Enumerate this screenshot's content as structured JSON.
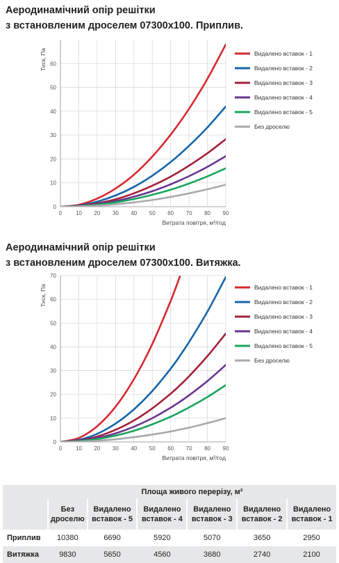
{
  "charts": [
    {
      "title_line1": "Аеродинамічний опір решітки",
      "title_line2": "з встановленим дроселем 07300х100. Приплив.",
      "ylabel": "Тиск, Па",
      "xlabel": "Витрата повітря, м³/год",
      "y_ticks": [
        "0",
        "10",
        "20",
        "30",
        "40",
        "50",
        "60"
      ],
      "x_ticks": [
        "0",
        "10",
        "20",
        "30",
        "40",
        "50",
        "60",
        "70",
        "80",
        "90"
      ]
    },
    {
      "title_line1": "Аеродинамічний опір решітки",
      "title_line2": "з встановленим дроселем 07300х100. Витяжка.",
      "ylabel": "Тиск, Па",
      "xlabel": "Витрата повітря, м³/год",
      "y_ticks": [
        "0",
        "10",
        "20",
        "30",
        "40",
        "50",
        "60",
        "70"
      ],
      "x_ticks": [
        "0",
        "10",
        "20",
        "30",
        "40",
        "50",
        "60",
        "70",
        "80",
        "90"
      ]
    }
  ],
  "chart_data": [
    {
      "type": "line",
      "title": "Аеродинамічний опір решітки з встановленим дроселем 07300х100. Приплив.",
      "xlabel": "Витрата повітря, м³/год",
      "ylabel": "Тиск, Па",
      "xlim": [
        0,
        90
      ],
      "ylim": [
        0,
        70
      ],
      "grid": true,
      "legend": "right",
      "x": [
        0,
        10,
        20,
        30,
        40,
        50,
        60,
        70,
        80,
        90
      ],
      "series": [
        {
          "name": "Видалено вставок - 1",
          "color": "#d7282f",
          "values": [
            0,
            0.8,
            3.4,
            7.6,
            13.4,
            21,
            30.2,
            41,
            53.6,
            68
          ]
        },
        {
          "name": "Видалено вставок - 2",
          "color": "#1565a9",
          "values": [
            0,
            0.5,
            2.1,
            4.7,
            8.3,
            13,
            18.7,
            25.5,
            33.2,
            42
          ]
        },
        {
          "name": "Видалено вставок - 3",
          "color": "#a3203a",
          "values": [
            0,
            0.35,
            1.4,
            3.1,
            5.6,
            8.8,
            12.6,
            17.2,
            22.4,
            28.3
          ]
        },
        {
          "name": "Видалено вставок - 4",
          "color": "#6a3590",
          "values": [
            0,
            0.26,
            1.05,
            2.35,
            4.2,
            6.5,
            9.4,
            12.8,
            16.7,
            21.2
          ]
        },
        {
          "name": "Видалено вставок - 5",
          "color": "#1aa55b",
          "values": [
            0,
            0.2,
            0.8,
            1.8,
            3.2,
            5,
            7.1,
            9.7,
            12.7,
            16.1
          ]
        },
        {
          "name": "Без дроселю",
          "color": "#a7a9ac",
          "values": [
            0,
            0.11,
            0.45,
            1.0,
            1.8,
            2.8,
            4.1,
            5.6,
            7.3,
            9.2
          ]
        }
      ]
    },
    {
      "type": "line",
      "title": "Аеродинамічний опір решітки з встановленим дроселем 07300х100. Витяжка.",
      "xlabel": "Витрата повітря, м³/год",
      "ylabel": "Тиск, Па",
      "xlim": [
        0,
        90
      ],
      "ylim": [
        0,
        70
      ],
      "grid": true,
      "legend": "right",
      "x": [
        0,
        10,
        20,
        30,
        40,
        50,
        60,
        65,
        70,
        80,
        90
      ],
      "series": [
        {
          "name": "Видалено вставок - 1",
          "color": "#d7282f",
          "values": [
            0,
            1.65,
            6.6,
            14.8,
            26.4,
            41.2,
            59.3,
            69.6,
            null,
            null,
            null
          ]
        },
        {
          "name": "Видалено вставок - 2",
          "color": "#1565a9",
          "values": [
            0,
            0.86,
            3.4,
            7.7,
            13.7,
            21.4,
            30.8,
            36.2,
            42,
            54.8,
            69.4
          ]
        },
        {
          "name": "Видалено вставок - 3",
          "color": "#a3203a",
          "values": [
            0,
            0.56,
            2.25,
            5.1,
            9.0,
            14.1,
            20.3,
            23.8,
            27.6,
            36.1,
            45.6
          ]
        },
        {
          "name": "Видалено вставок - 4",
          "color": "#6a3590",
          "values": [
            0,
            0.4,
            1.6,
            3.6,
            6.4,
            10.0,
            14.4,
            16.9,
            19.6,
            25.6,
            32.4
          ]
        },
        {
          "name": "Видалено вставок - 5",
          "color": "#1aa55b",
          "values": [
            0,
            0.3,
            1.18,
            2.65,
            4.7,
            7.4,
            10.6,
            12.5,
            14.5,
            18.9,
            23.9
          ]
        },
        {
          "name": "Без дроселю",
          "color": "#a7a9ac",
          "values": [
            0,
            0.12,
            0.5,
            1.11,
            2.0,
            3.1,
            4.4,
            5.2,
            6.0,
            7.9,
            10.0
          ]
        }
      ]
    }
  ],
  "table": {
    "header": "Площа живого перерізу, м²",
    "columns": [
      "Без дроселю",
      "Видалено вставок - 5",
      "Видалено вставок - 4",
      "Видалено вставок - 3",
      "Видалено вставок - 2",
      "Видалено вставок - 1"
    ],
    "rows": [
      {
        "label": "Приплив",
        "values": [
          "10380",
          "6690",
          "5920",
          "5070",
          "3650",
          "2950"
        ]
      },
      {
        "label": "Витяжка",
        "values": [
          "9830",
          "5650",
          "4560",
          "3680",
          "2740",
          "2100"
        ]
      }
    ]
  }
}
